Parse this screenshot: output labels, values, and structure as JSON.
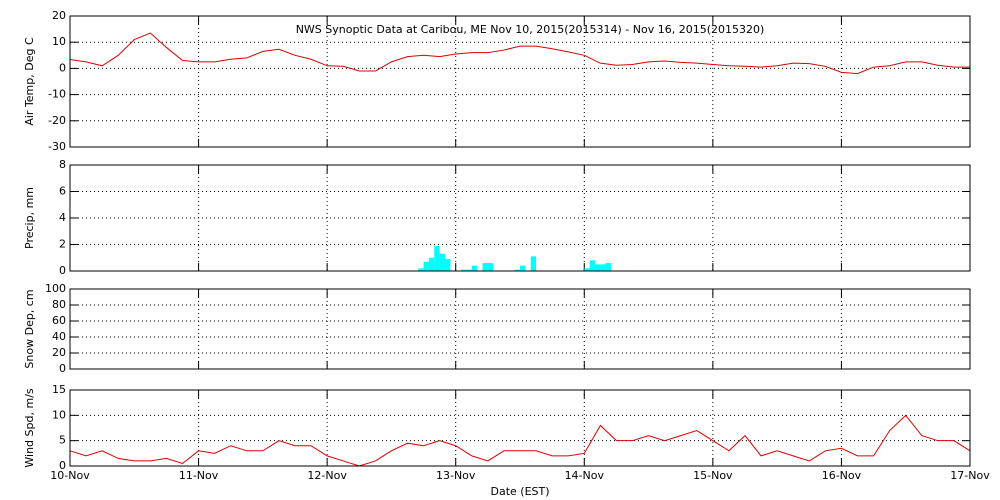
{
  "chart_data": [
    {
      "type": "line",
      "title": "NWS Synoptic Data at Caribou, ME   Nov 10, 2015(2015314) - Nov 16, 2015(2015320)",
      "ylabel": "Air Temp, Deg C",
      "color": "#dd0000",
      "x": [
        0,
        3,
        6,
        9,
        12,
        15,
        18,
        21,
        24,
        27,
        30,
        33,
        36,
        39,
        42,
        45,
        48,
        51,
        54,
        57,
        60,
        63,
        66,
        69,
        72,
        75,
        78,
        81,
        84,
        87,
        90,
        93,
        96,
        99,
        102,
        105,
        108,
        111,
        114,
        117,
        120,
        123,
        126,
        129,
        132,
        135,
        138,
        141,
        144,
        147,
        150,
        153,
        156,
        159,
        162,
        165,
        168
      ],
      "values": [
        3.4,
        2.5,
        1,
        5,
        11,
        13.5,
        8,
        3,
        2.5,
        2.5,
        3.5,
        4,
        6.5,
        7.3,
        5,
        3.5,
        1,
        0.8,
        -1,
        -1,
        2.5,
        4.5,
        5,
        4.5,
        5.5,
        6,
        6,
        7,
        8.5,
        8.5,
        7.5,
        6.3,
        5,
        2,
        1.2,
        1.5,
        2.5,
        2.8,
        2.3,
        2,
        1.5,
        1,
        0.8,
        0.5,
        1,
        2,
        1.8,
        0.8,
        -1.5,
        -2,
        0.5,
        1,
        2.5,
        2.5,
        1.2,
        0.5,
        0.5
      ],
      "xlim": [
        0,
        168
      ],
      "xticks": [
        0,
        24,
        48,
        72,
        96,
        120,
        144,
        168
      ],
      "ylim": [
        -30,
        20
      ],
      "yticks": [
        -30,
        -20,
        -10,
        0,
        10,
        20
      ],
      "grid": true
    },
    {
      "type": "bar",
      "ylabel": "Precip, mm",
      "color": "#00ffff",
      "x": [
        65,
        66,
        67,
        68,
        69,
        70,
        73,
        74,
        75,
        77,
        78,
        83,
        84,
        86,
        96,
        97,
        98,
        99,
        100
      ],
      "values": [
        0.2,
        0.7,
        1.0,
        1.9,
        1.3,
        0.9,
        0.1,
        0.1,
        0.4,
        0.6,
        0.6,
        0.1,
        0.4,
        1.1,
        0.2,
        0.8,
        0.5,
        0.5,
        0.6
      ],
      "xlim": [
        0,
        168
      ],
      "xticks": [
        0,
        24,
        48,
        72,
        96,
        120,
        144,
        168
      ],
      "ylim": [
        0,
        8
      ],
      "yticks": [
        0,
        2,
        4,
        6,
        8
      ],
      "grid": true
    },
    {
      "type": "line",
      "ylabel": "Snow Dep, cm",
      "xlim": [
        0,
        168
      ],
      "xticks": [
        0,
        24,
        48,
        72,
        96,
        120,
        144,
        168
      ],
      "ylim": [
        0,
        100
      ],
      "yticks": [
        0,
        20,
        40,
        60,
        80,
        100
      ],
      "grid": true
    },
    {
      "type": "line",
      "ylabel": "Wind Spd, m/s",
      "xlabel": "Date (EST)",
      "color": "#dd0000",
      "x": [
        0,
        3,
        6,
        9,
        12,
        15,
        18,
        21,
        24,
        27,
        30,
        33,
        36,
        39,
        42,
        45,
        48,
        51,
        54,
        57,
        60,
        63,
        66,
        69,
        72,
        75,
        78,
        81,
        84,
        87,
        90,
        93,
        96,
        99,
        102,
        105,
        108,
        111,
        114,
        117,
        120,
        123,
        126,
        129,
        132,
        135,
        138,
        141,
        144,
        147,
        150,
        153,
        156,
        159,
        162,
        165,
        168
      ],
      "values": [
        3,
        2,
        3,
        1.5,
        1,
        1,
        1.5,
        0.5,
        3,
        2.5,
        4,
        3,
        3,
        5,
        4,
        4,
        2,
        1,
        0,
        1,
        3,
        4.5,
        4,
        5,
        4,
        2,
        1,
        3,
        3,
        3,
        2,
        2,
        2.5,
        8,
        5,
        5,
        6,
        5,
        6,
        7,
        5,
        3,
        6,
        2,
        3,
        2,
        1,
        3,
        3.5,
        2,
        2,
        7,
        10,
        6,
        5,
        5,
        3
      ],
      "xlim": [
        0,
        168
      ],
      "xticks": [
        {
          "value": 0,
          "label": "10-Nov"
        },
        {
          "value": 24,
          "label": "11-Nov"
        },
        {
          "value": 48,
          "label": "12-Nov"
        },
        {
          "value": 72,
          "label": "13-Nov"
        },
        {
          "value": 96,
          "label": "14-Nov"
        },
        {
          "value": 120,
          "label": "15-Nov"
        },
        {
          "value": 144,
          "label": "16-Nov"
        },
        {
          "value": 168,
          "label": "17-Nov"
        }
      ],
      "ylim": [
        0,
        15
      ],
      "yticks": [
        0,
        5,
        10,
        15
      ],
      "grid": true
    }
  ]
}
